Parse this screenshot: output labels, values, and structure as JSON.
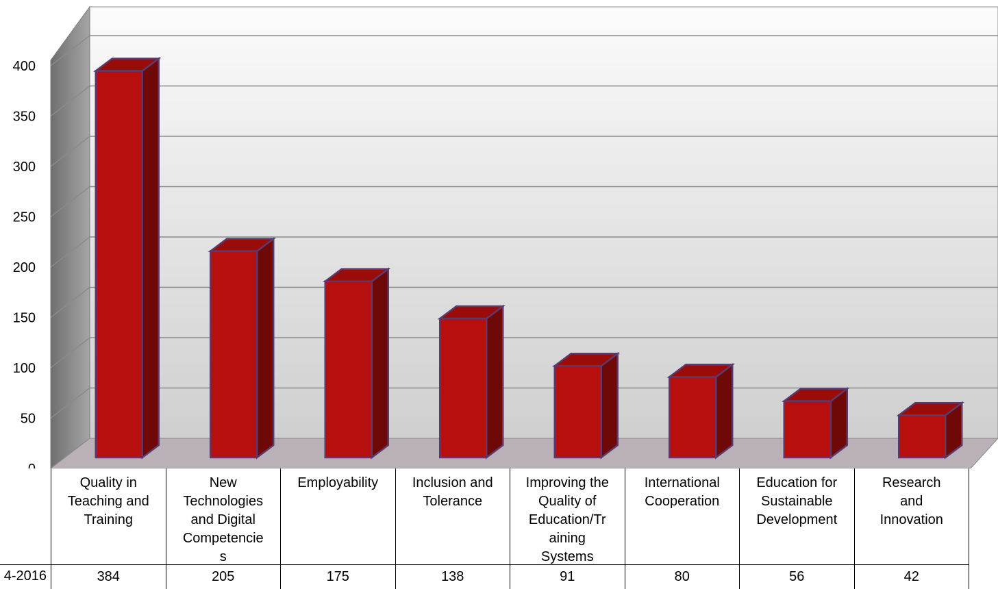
{
  "chart_data": {
    "type": "bar",
    "title": "",
    "xlabel": "",
    "ylabel": "",
    "ylim": [
      0,
      400
    ],
    "yticks": [
      0,
      50,
      100,
      150,
      200,
      250,
      300,
      350,
      400
    ],
    "grid": true,
    "legend": "none",
    "categories": [
      "Quality in Teaching and Training",
      "New Technologies and Digital Competencies",
      "Employability",
      "Inclusion and Tolerance",
      "Improving the Quality of Education/Training Systems",
      "International Cooperation",
      "Education for Sustainable Development",
      "Research and Innovation"
    ],
    "category_lines": [
      "Quality in\nTeaching and\nTraining",
      "New\nTechnologies\nand Digital\nCompetencie\ns",
      "Employability",
      "Inclusion and\nTolerance",
      "Improving the\nQuality of\nEducation/Tr\naining\nSystems",
      "International\nCooperation",
      "Education for\nSustainable\nDevelopment",
      "Research\nand\nInnovation"
    ],
    "series": [
      {
        "name": "4-2016",
        "values": [
          384,
          205,
          175,
          138,
          91,
          80,
          56,
          42
        ]
      }
    ],
    "colors": {
      "bar_front": "#b70f0d",
      "bar_top": "#9a0c0a",
      "bar_side": "#6e0908",
      "bar_edge": "#5b3a6e",
      "back_wall_top": "#fbfbfb",
      "back_wall_bottom": "#cfcfcf",
      "side_wall": "#8c8c8c",
      "floor": "#b9b0b8",
      "grid": "#8a8a8a"
    }
  }
}
